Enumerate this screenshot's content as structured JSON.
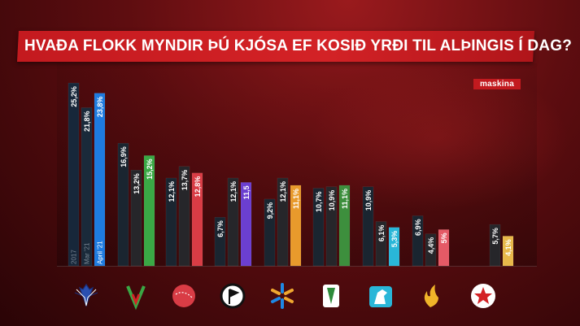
{
  "title": "HVAÐA FLOKK MYNDIR ÞÚ KJÓSA EF KOSIÐ YRÐI TIL ALÞINGIS Í DAG?",
  "brand": "maskina",
  "chart_data": {
    "type": "bar",
    "title": "HVAÐA FLOKK MYNDIR ÞÚ KJÓSA EF KOSIÐ YRÐI TIL ALÞINGIS Í DAG?",
    "period_labels": [
      "2017",
      "Mar '21",
      "April '21"
    ],
    "parties": [
      {
        "icon": "falcon-icon",
        "color": "#1e7be0",
        "bars": [
          {
            "value": 25.2,
            "label": "25,2%"
          },
          {
            "value": 21.8,
            "label": "21,8%"
          },
          {
            "value": 23.8,
            "label": "23,8%"
          }
        ]
      },
      {
        "icon": "v-icon",
        "color": "#3aa845",
        "bars": [
          {
            "value": 16.9,
            "label": "16,9%"
          },
          {
            "value": 13.2,
            "label": "13,2%"
          },
          {
            "value": 15.2,
            "label": "15,2%"
          }
        ]
      },
      {
        "icon": "rose-icon",
        "color": "#d93c45",
        "bars": [
          {
            "value": 12.1,
            "label": "12,1%"
          },
          {
            "value": 13.7,
            "label": "13,7%"
          },
          {
            "value": 12.8,
            "label": "12,8%"
          }
        ]
      },
      {
        "icon": "pirate-flag-icon",
        "color": "#6b3fd0",
        "bars": [
          {
            "value": 6.7,
            "label": "6,7%"
          },
          {
            "value": 12.1,
            "label": "12,1%"
          },
          {
            "value": 11.5,
            "label": "11,5"
          }
        ]
      },
      {
        "icon": "snowflake-icon",
        "color": "#e89a2c",
        "bars": [
          {
            "value": 9.2,
            "label": "9,2%"
          },
          {
            "value": 12.1,
            "label": "12,1%"
          },
          {
            "value": 11.1,
            "label": "11,1%"
          }
        ]
      },
      {
        "icon": "leaf-icon",
        "color": "#3d8f3d",
        "bars": [
          {
            "value": 10.7,
            "label": "10,7%"
          },
          {
            "value": 10.9,
            "label": "10,9%"
          },
          {
            "value": 11.1,
            "label": "11,1%"
          }
        ]
      },
      {
        "icon": "horse-icon",
        "color": "#29b6d8",
        "bars": [
          {
            "value": 10.9,
            "label": "10,9%"
          },
          {
            "value": 6.1,
            "label": "6,1%"
          },
          {
            "value": 5.3,
            "label": "5,3%"
          }
        ]
      },
      {
        "icon": "flame-icon",
        "color": "#e55a66",
        "bars": [
          {
            "value": 6.9,
            "label": "6,9%"
          },
          {
            "value": 4.4,
            "label": "4,4%"
          },
          {
            "value": 5.0,
            "label": "5%"
          }
        ]
      },
      {
        "icon": "star-icon",
        "color": "#e8b84a",
        "bars": [
          {
            "value": null,
            "label": ""
          },
          {
            "value": 5.7,
            "label": "5,7%"
          },
          {
            "value": 4.1,
            "label": "4,1%"
          }
        ]
      }
    ],
    "ylim": [
      0,
      26
    ]
  }
}
